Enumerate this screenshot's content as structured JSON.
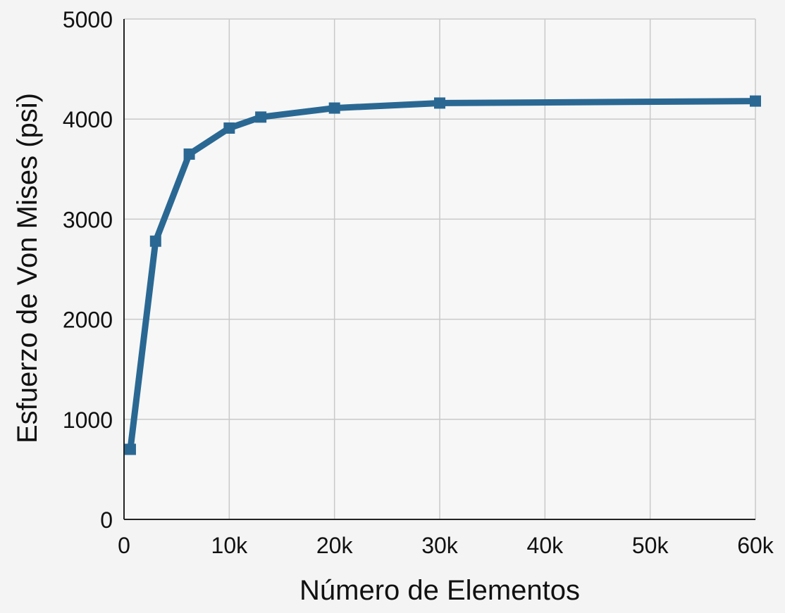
{
  "chart_data": {
    "type": "line",
    "title": "",
    "xlabel": "Número de Elementos",
    "ylabel": "Esfuerzo de Von Mises (psi)",
    "xlim": [
      0,
      60000
    ],
    "ylim": [
      0,
      5000
    ],
    "x_ticks": [
      0,
      10000,
      20000,
      30000,
      40000,
      50000,
      60000
    ],
    "x_tick_labels": [
      "0",
      "10k",
      "20k",
      "30k",
      "40k",
      "50k",
      "60k"
    ],
    "y_ticks": [
      0,
      1000,
      2000,
      3000,
      4000,
      5000
    ],
    "y_tick_labels": [
      "0",
      "1000",
      "2000",
      "3000",
      "4000",
      "5000"
    ],
    "grid": true,
    "series": [
      {
        "x": [
          600,
          3000,
          6200,
          10000,
          13000,
          20000,
          30000,
          60000
        ],
        "y": [
          700,
          2780,
          3650,
          3910,
          4020,
          4110,
          4160,
          4180
        ],
        "color": "#2a6893",
        "marker": "square"
      }
    ]
  }
}
